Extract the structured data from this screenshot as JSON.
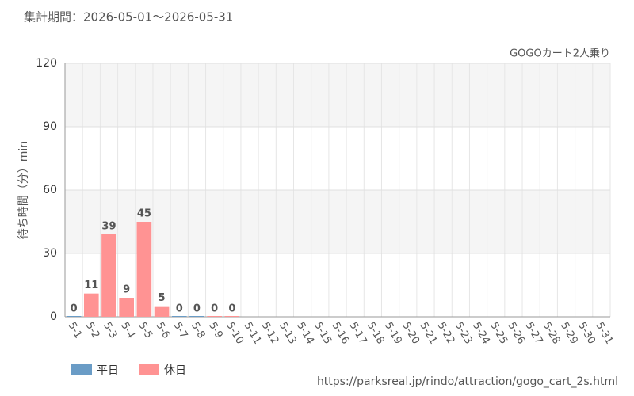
{
  "chart_data": {
    "type": "bar",
    "title": "集計期間：2026-05-01～2026-05-31",
    "subtitle": "GOGOカート2人乗り",
    "y_label": "待ち時間（分）min",
    "source": "https://parksreal.jp/rindo/attraction/gogo_cart_2s.html",
    "categories": [
      "5-1",
      "5-2",
      "5-3",
      "5-4",
      "5-5",
      "5-6",
      "5-7",
      "5-8",
      "5-9",
      "5-10",
      "5-11",
      "5-12",
      "5-13",
      "5-14",
      "5-15",
      "5-16",
      "5-17",
      "5-18",
      "5-19",
      "5-20",
      "5-21",
      "5-22",
      "5-23",
      "5-24",
      "5-25",
      "5-26",
      "5-27",
      "5-28",
      "5-29",
      "5-30",
      "5-31"
    ],
    "x_label_colors": [
      "#444",
      "#f08080",
      "#f08080",
      "#f08080",
      "#f08080",
      "#f08080",
      "#444",
      "#444",
      "#f08080",
      "#f08080",
      "#444",
      "#444",
      "#444",
      "#444",
      "#444",
      "#f08080",
      "#f08080",
      "#444",
      "#444",
      "#444",
      "#444",
      "#444",
      "#f08080",
      "#f08080",
      "#444",
      "#444",
      "#444",
      "#444",
      "#444",
      "#f08080",
      "#f08080"
    ],
    "series": [
      {
        "name": "平日",
        "color": "#6a9cc6",
        "values": [
          0,
          null,
          null,
          null,
          null,
          null,
          0,
          0,
          null,
          null,
          null,
          null,
          null,
          null,
          null,
          null,
          null,
          null,
          null,
          null,
          null,
          null,
          null,
          null,
          null,
          null,
          null,
          null,
          null,
          null,
          null
        ]
      },
      {
        "name": "休日",
        "color": "#ff9393",
        "values": [
          null,
          11,
          39,
          9,
          45,
          5,
          null,
          null,
          0,
          0,
          null,
          null,
          null,
          null,
          null,
          null,
          null,
          null,
          null,
          null,
          null,
          null,
          null,
          null,
          null,
          null,
          null,
          null,
          null,
          null,
          null
        ]
      }
    ],
    "ylim": [
      0,
      120
    ],
    "yticks": [
      0,
      30,
      60,
      90,
      120
    ],
    "grid": true
  }
}
